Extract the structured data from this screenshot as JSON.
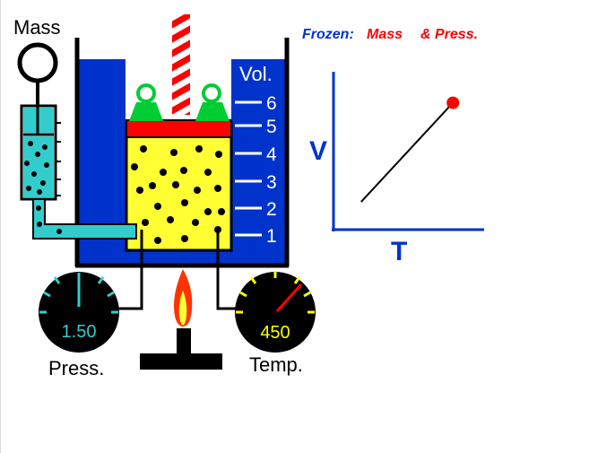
{
  "labels": {
    "mass": "Mass",
    "vol": "Vol.",
    "press": "Press.",
    "temp": "Temp.",
    "frozen_prefix": "Frozen:",
    "frozen_mass": "Mass",
    "frozen_press": "& Press."
  },
  "volume_scale": [
    "1",
    "2",
    "3",
    "4",
    "5",
    "6"
  ],
  "pressure_gauge": {
    "value": "1.50",
    "color": "#33cccc"
  },
  "temperature_gauge": {
    "value": "450",
    "color": "#ffff00"
  },
  "chart_data": {
    "type": "line",
    "xlabel": "T",
    "ylabel": "V",
    "series": [
      {
        "x": [
          0.18,
          0.82
        ],
        "y": [
          0.17,
          0.82
        ]
      }
    ],
    "current_point": {
      "x": 0.82,
      "y": 0.82
    },
    "xlim": [
      0,
      1
    ],
    "ylim": [
      0,
      1
    ]
  },
  "colors": {
    "water": "#0033cc",
    "gas": "#ffff33",
    "piston": "#ff0000",
    "weight": "#00cc33",
    "mercury": "#33cccc",
    "frozen_blue": "#0033cc",
    "frozen_red": "#ff0000",
    "axis": "#0033cc"
  }
}
